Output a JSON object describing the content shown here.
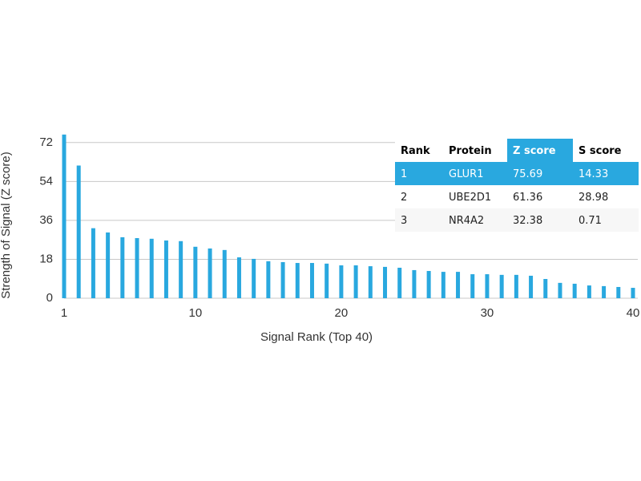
{
  "chart_data": {
    "type": "bar",
    "x_label": "Signal Rank (Top 40)",
    "y_label": "Strength of Signal (Z score)",
    "x": [
      1,
      2,
      3,
      4,
      5,
      6,
      7,
      8,
      9,
      10,
      11,
      12,
      13,
      14,
      15,
      16,
      17,
      18,
      19,
      20,
      21,
      22,
      23,
      24,
      25,
      26,
      27,
      28,
      29,
      30,
      31,
      32,
      33,
      34,
      35,
      36,
      37,
      38,
      39,
      40
    ],
    "values": [
      75.69,
      61.36,
      32.38,
      30.4,
      28.2,
      27.8,
      27.5,
      26.7,
      26.4,
      23.8,
      23.0,
      22.3,
      18.9,
      18.2,
      17.1,
      16.7,
      16.3,
      16.3,
      16.0,
      15.2,
      15.2,
      14.8,
      14.5,
      14.1,
      13.0,
      12.6,
      12.2,
      12.2,
      11.1,
      11.1,
      10.8,
      10.8,
      10.4,
      8.9,
      7.1,
      6.7,
      5.9,
      5.6,
      5.2,
      4.8
    ],
    "color": "#29a8df",
    "xlim": [
      1,
      40
    ],
    "xticks": [
      1,
      10,
      20,
      30,
      40
    ],
    "ylim": [
      0,
      76
    ],
    "yticks": [
      0,
      18,
      36,
      54,
      72
    ],
    "grid": true
  },
  "table": {
    "columns": [
      "Rank",
      "Protein",
      "Z score",
      "S score"
    ],
    "rows": [
      [
        1,
        "GLUR1",
        75.69,
        14.33
      ],
      [
        2,
        "UBE2D1",
        61.36,
        28.98
      ],
      [
        3,
        "NR4A2",
        32.38,
        0.71
      ]
    ]
  }
}
